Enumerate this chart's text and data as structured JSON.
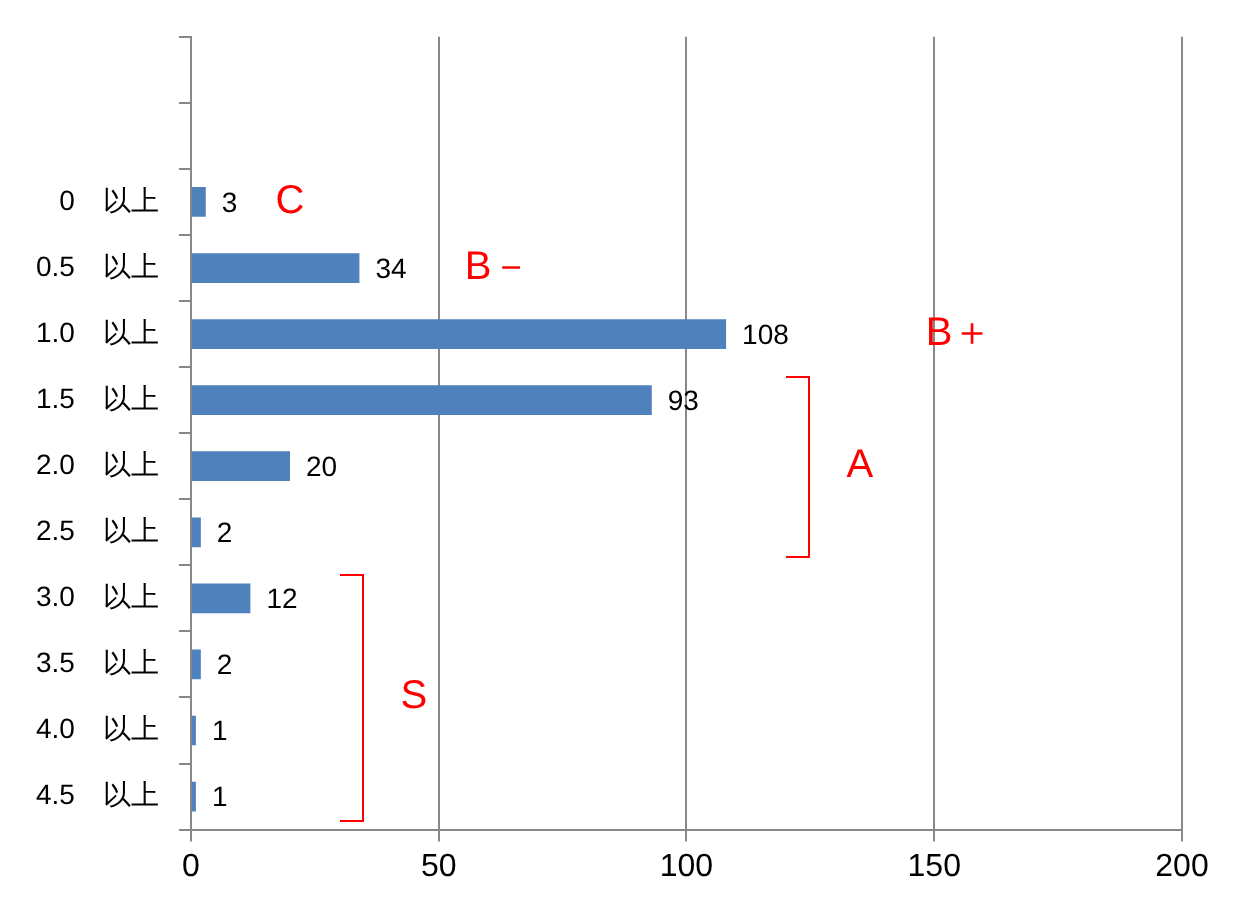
{
  "chart_data": {
    "type": "bar",
    "orientation": "horizontal",
    "categories": [
      null,
      null,
      "0　以上",
      "0.5　以上",
      "1.0　以上",
      "1.5　以上",
      "2.0　以上",
      "2.5　以上",
      "3.0　以上",
      "3.5　以上",
      "4.0　以上",
      "4.5　以上"
    ],
    "values": [
      null,
      null,
      3,
      34,
      108,
      93,
      20,
      2,
      12,
      2,
      1,
      1
    ],
    "color": "#4f81bd",
    "xlim": [
      0,
      200
    ],
    "xticks": [
      0,
      50,
      100,
      150,
      200
    ],
    "grid": "x",
    "data_labels": true,
    "annotations": [
      "C",
      "B－",
      "B＋",
      "A",
      "S"
    ]
  }
}
